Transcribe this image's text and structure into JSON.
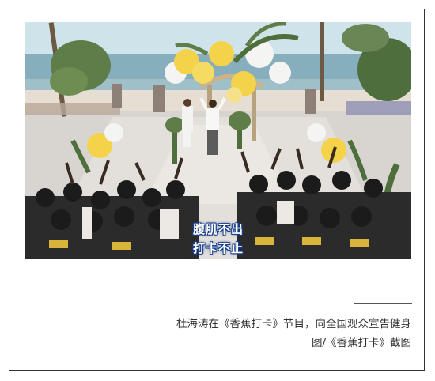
{
  "photo": {
    "alt": "节目截图",
    "subtitle_line1": "腹肌不出",
    "subtitle_line2": "打卡不止",
    "colors": {
      "sky": "#cfe3ea",
      "sea": "#7fa9b8",
      "sand": "#e9e4dc",
      "floor": "#d9d6d2",
      "balloon_yellow": "#f4d34a",
      "balloon_white": "#f4f4f2",
      "shirt": "#1b1b1b",
      "subtitle_outline": "#1a3f8a"
    }
  },
  "caption": {
    "line1": "杜海涛在《香蕉打卡》节目，向全国观众宣告健身",
    "line2": "图/《香蕉打卡》截图"
  }
}
